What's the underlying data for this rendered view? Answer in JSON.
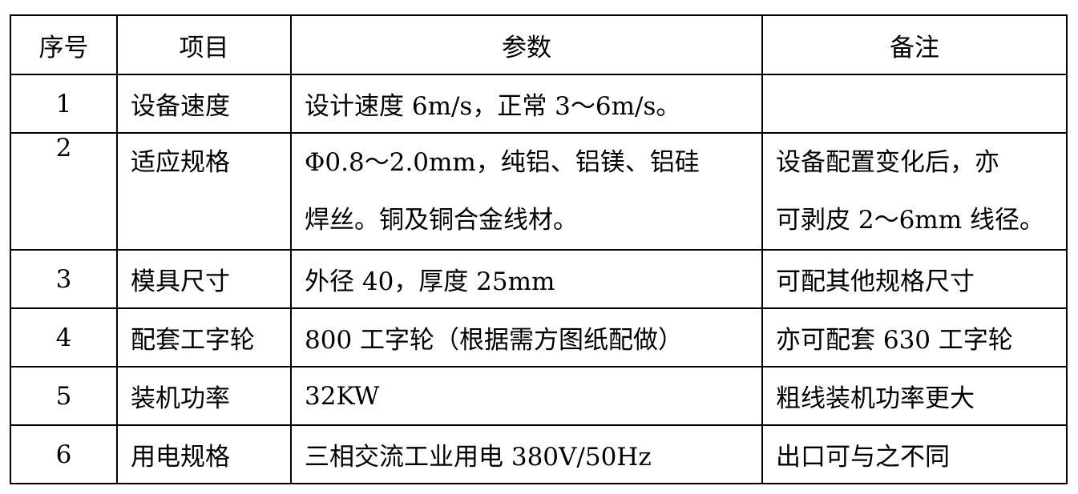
{
  "headers": [
    "序号",
    "项目",
    "参数",
    "备注"
  ],
  "rows": [
    {
      "no": "1",
      "item": "设备速度",
      "param": [
        "设计速度 6m/s，正常 3～6m/s。"
      ],
      "note": [
        ""
      ]
    },
    {
      "no": "2",
      "item": "适应规格",
      "param": [
        "Φ0.8～2.0mm，纯铝、铝镁、铝硅",
        "焊丝。铜及铜合金线材。"
      ],
      "note": [
        "设备配置变化后，亦",
        "可剥皮 2～6mm 线径。"
      ]
    },
    {
      "no": "3",
      "item": "模具尺寸",
      "param": [
        "外径 40，厚度 25mm"
      ],
      "note": [
        "可配其他规格尺寸"
      ]
    },
    {
      "no": "4",
      "item": "配套工字轮",
      "param": [
        "800 工字轮（根据需方图纸配做）"
      ],
      "note": [
        "亦可配套 630 工字轮"
      ]
    },
    {
      "no": "5",
      "item": "装机功率",
      "param": [
        "32KW"
      ],
      "note": [
        "粗线装机功率更大"
      ]
    },
    {
      "no": "6",
      "item": "用电规格",
      "param": [
        "三相交流工业用电   380V/50Hz"
      ],
      "note": [
        "出口可与之不同"
      ]
    }
  ]
}
